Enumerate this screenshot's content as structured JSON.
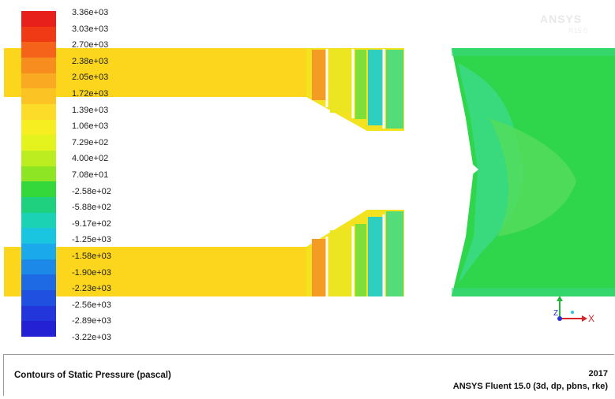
{
  "colorbar": {
    "labels": [
      "3.36e+03",
      "3.03e+03",
      "2.70e+03",
      "2.38e+03",
      "2.05e+03",
      "1.72e+03",
      "1.39e+03",
      "1.06e+03",
      "7.29e+02",
      "4.00e+02",
      "7.08e+01",
      "-2.58e+02",
      "-5.88e+02",
      "-9.17e+02",
      "-1.25e+03",
      "-1.58e+03",
      "-1.90e+03",
      "-2.23e+03",
      "-2.56e+03",
      "-2.89e+03",
      "-3.22e+03"
    ],
    "colors": [
      "#e8201c",
      "#f03a16",
      "#f5631a",
      "#f78d1f",
      "#f9a922",
      "#fbc324",
      "#fcdc28",
      "#f7ee22",
      "#e4f21e",
      "#bced20",
      "#8ee524",
      "#35d83a",
      "#1fd17e",
      "#1cd2b4",
      "#1ac6df",
      "#1aa9ea",
      "#1c89e9",
      "#1e6ae4",
      "#2050e0",
      "#2236dc",
      "#2420d4"
    ]
  },
  "watermark": {
    "brand": "ANSYS",
    "sub": "R15.0"
  },
  "triad": {
    "x_label": "X",
    "z_label": "Z"
  },
  "footer": {
    "title": "Contours of Static Pressure (pascal)",
    "year": "2017",
    "version": "ANSYS Fluent 15.0 (3d, dp, pbns, rke)"
  }
}
